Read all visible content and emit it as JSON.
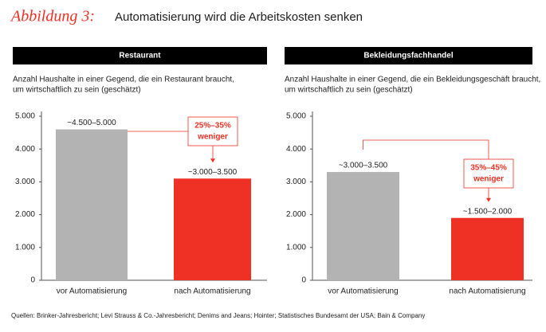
{
  "figure_label": "Abbildung 3:",
  "title": "Automatisierung wird die Arbeitskosten senken",
  "source": "Quellen: Brinker-Jahresbericht; Levi Strauss & Co.-Jahresbericht; Denims and Jeans; Hointer; Statistisches Bundesamt der USA; Bain & Company",
  "chart_data": [
    {
      "type": "bar",
      "title": "Restaurant",
      "subtitle": [
        "Anzahl Haushalte in einer Gegend, die ein Restaurant braucht,",
        "um wirtschaftlich zu sein (geschätzt)"
      ],
      "categories": [
        "vor Automatisierung",
        "nach Automatisierung"
      ],
      "values": [
        4600,
        3100
      ],
      "value_labels": [
        "~4.500–5.000",
        "~3.000–3.500"
      ],
      "colors": [
        "#b3b3b3",
        "#ee3124"
      ],
      "annotation": [
        "25%–35%",
        "weniger"
      ],
      "ylim": [
        0,
        5000
      ],
      "yticks": [
        0,
        {
          "value": 1000,
          "label": "1.000"
        },
        {
          "value": 2000,
          "label": "2.000"
        },
        {
          "value": 3000,
          "label": "3.000"
        },
        {
          "value": 4000,
          "label": "4.000"
        },
        {
          "value": 5000,
          "label": "5.000"
        }
      ]
    },
    {
      "type": "bar",
      "title": "Bekleidungsfachhandel",
      "subtitle": [
        "Anzahl Haushalte in einer Gegend, die ein Bekleidungsgeschäft braucht,",
        "um wirtschaftlich zu sein (geschätzt)"
      ],
      "categories": [
        "vor Automatisierung",
        "nach Automatisierung"
      ],
      "values": [
        3300,
        1900
      ],
      "value_labels": [
        "~3.000–3.500",
        "~1.500–2.000"
      ],
      "colors": [
        "#b3b3b3",
        "#ee3124"
      ],
      "annotation": [
        "35%–45%",
        "weniger"
      ],
      "ylim": [
        0,
        5000
      ],
      "yticks": [
        0,
        {
          "value": 1000,
          "label": "1.000"
        },
        {
          "value": 2000,
          "label": "2.000"
        },
        {
          "value": 3000,
          "label": "3.000"
        },
        {
          "value": 4000,
          "label": "4.000"
        },
        {
          "value": 5000,
          "label": "5.000"
        }
      ]
    }
  ]
}
